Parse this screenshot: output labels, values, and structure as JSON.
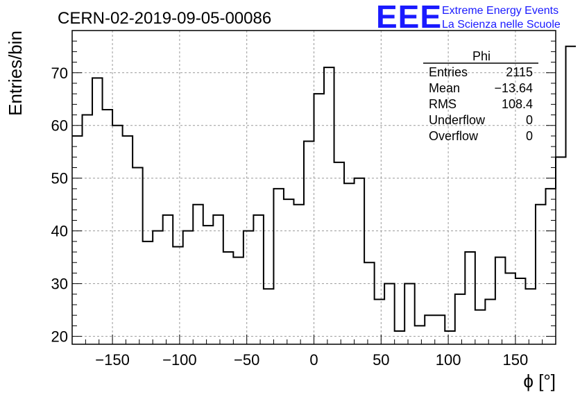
{
  "page_title": "CERN-02-2019-09-05-00086",
  "logo": {
    "mark": "EEE",
    "line1": "Extreme Energy Events",
    "line2": "La Scienza nelle Scuole"
  },
  "colors": {
    "logo": "#1a1aff",
    "line": "#000000",
    "grid": "#999999"
  },
  "stats_box": {
    "title": "Phi",
    "rows": [
      {
        "label": "Entries",
        "value": "2115"
      },
      {
        "label": "Mean",
        "value": "−13.64"
      },
      {
        "label": "RMS",
        "value": "108.4"
      },
      {
        "label": "Underflow",
        "value": "0"
      },
      {
        "label": "Overflow",
        "value": "0"
      }
    ]
  },
  "chart_data": {
    "type": "histogram",
    "title": "CERN-02-2019-09-05-00086",
    "xlabel": "ϕ [°]",
    "ylabel": "Entries/bin",
    "xlim": [
      -180,
      180
    ],
    "ylim": [
      18.5,
      78
    ],
    "grid": true,
    "bin_width": 7.5,
    "bin_edges_start": -180,
    "values": [
      58,
      62,
      69,
      63,
      60,
      58,
      52,
      38,
      40,
      43,
      37,
      40,
      45,
      41,
      43,
      36,
      35,
      40,
      43,
      29,
      48,
      46,
      45,
      57,
      66,
      71,
      53,
      49,
      50,
      34,
      27,
      30,
      21,
      30,
      22,
      24,
      24,
      21,
      28,
      36,
      25,
      27,
      35,
      32,
      31,
      29,
      45,
      48,
      54,
      75
    ],
    "xticks": [
      -150,
      -100,
      -50,
      0,
      50,
      100,
      150
    ],
    "xtick_labels": [
      "−150",
      "−100",
      "−50",
      "0",
      "50",
      "100",
      "150"
    ],
    "yticks": [
      20,
      30,
      40,
      50,
      60,
      70
    ],
    "ytick_labels": [
      "20",
      "30",
      "40",
      "50",
      "60",
      "70"
    ]
  }
}
